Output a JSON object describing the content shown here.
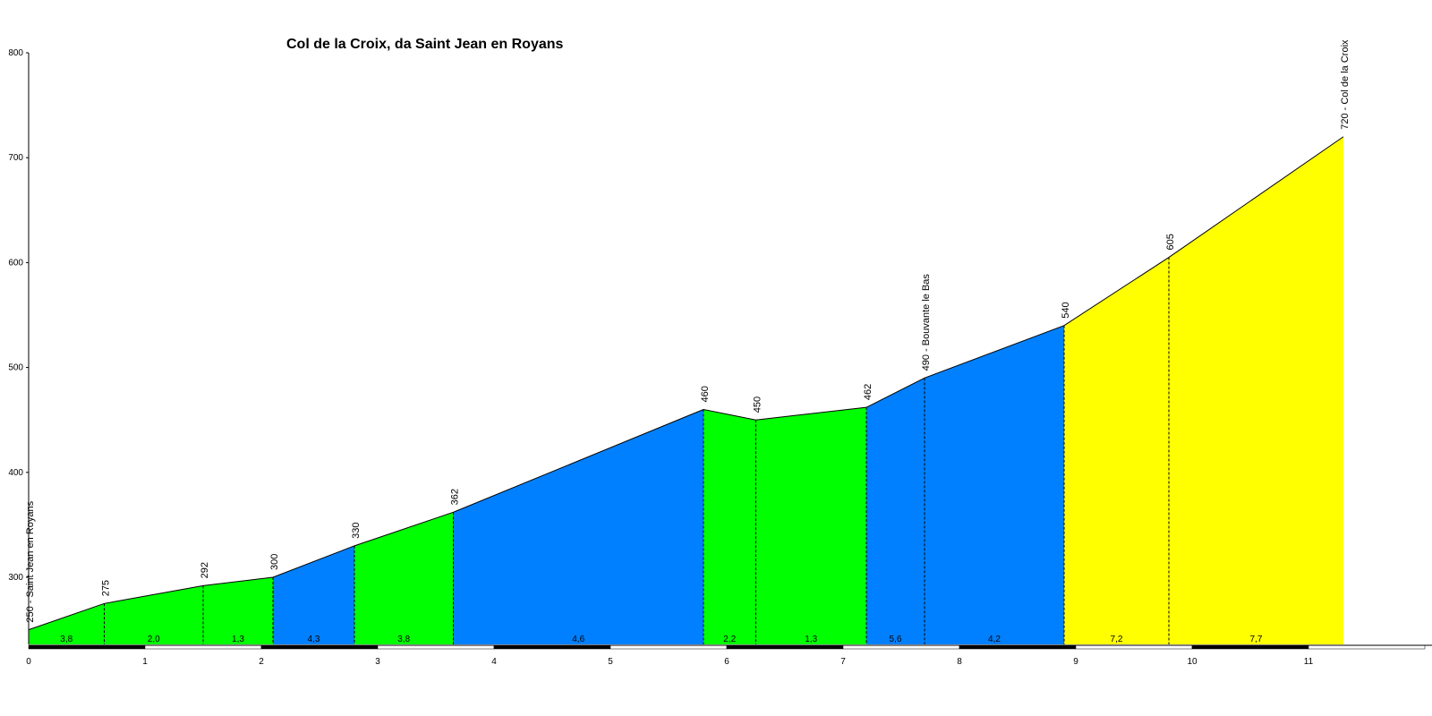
{
  "chart_data": {
    "type": "area",
    "title": "Col de la Croix, da Saint Jean en Royans",
    "xlabel": "",
    "ylabel": "",
    "xlim": [
      0,
      11.3
    ],
    "ylim": [
      238,
      800
    ],
    "x_ticks": [
      "0",
      "1",
      "2",
      "3",
      "4",
      "5",
      "6",
      "7",
      "8",
      "9",
      "10",
      "11"
    ],
    "y_ticks": [
      "300",
      "400",
      "500",
      "600",
      "700",
      "800"
    ],
    "profile_points": [
      {
        "x": 0.0,
        "y": 250,
        "label": "250 - Saint Jean en Royans"
      },
      {
        "x": 0.65,
        "y": 275,
        "label": "275"
      },
      {
        "x": 1.5,
        "y": 292,
        "label": "292"
      },
      {
        "x": 2.1,
        "y": 300,
        "label": "300"
      },
      {
        "x": 2.8,
        "y": 330,
        "label": "330"
      },
      {
        "x": 3.65,
        "y": 362,
        "label": "362"
      },
      {
        "x": 5.8,
        "y": 460,
        "label": "460"
      },
      {
        "x": 6.25,
        "y": 450,
        "label": "450"
      },
      {
        "x": 7.2,
        "y": 462,
        "label": "462"
      },
      {
        "x": 7.7,
        "y": 490,
        "label": "490 - Bouvante le Bas"
      },
      {
        "x": 8.9,
        "y": 540,
        "label": "540"
      },
      {
        "x": 9.8,
        "y": 605,
        "label": "605"
      },
      {
        "x": 11.3,
        "y": 720,
        "label": "720 - Col de la Croix"
      }
    ],
    "segments": [
      {
        "grade": "3,8",
        "color": "#00ff00"
      },
      {
        "grade": "2,0",
        "color": "#00ff00"
      },
      {
        "grade": "1,3",
        "color": "#00ff00"
      },
      {
        "grade": "4,3",
        "color": "#0080ff"
      },
      {
        "grade": "3,8",
        "color": "#00ff00"
      },
      {
        "grade": "4,6",
        "color": "#0080ff"
      },
      {
        "grade": "2,2",
        "color": "#00ff00"
      },
      {
        "grade": "1,3",
        "color": "#00ff00"
      },
      {
        "grade": "5,6",
        "color": "#0080ff"
      },
      {
        "grade": "4,2",
        "color": "#0080ff"
      },
      {
        "grade": "7,2",
        "color": "#ffff00"
      },
      {
        "grade": "7,7",
        "color": "#ffff00"
      }
    ],
    "grid": false,
    "legend": "none"
  }
}
